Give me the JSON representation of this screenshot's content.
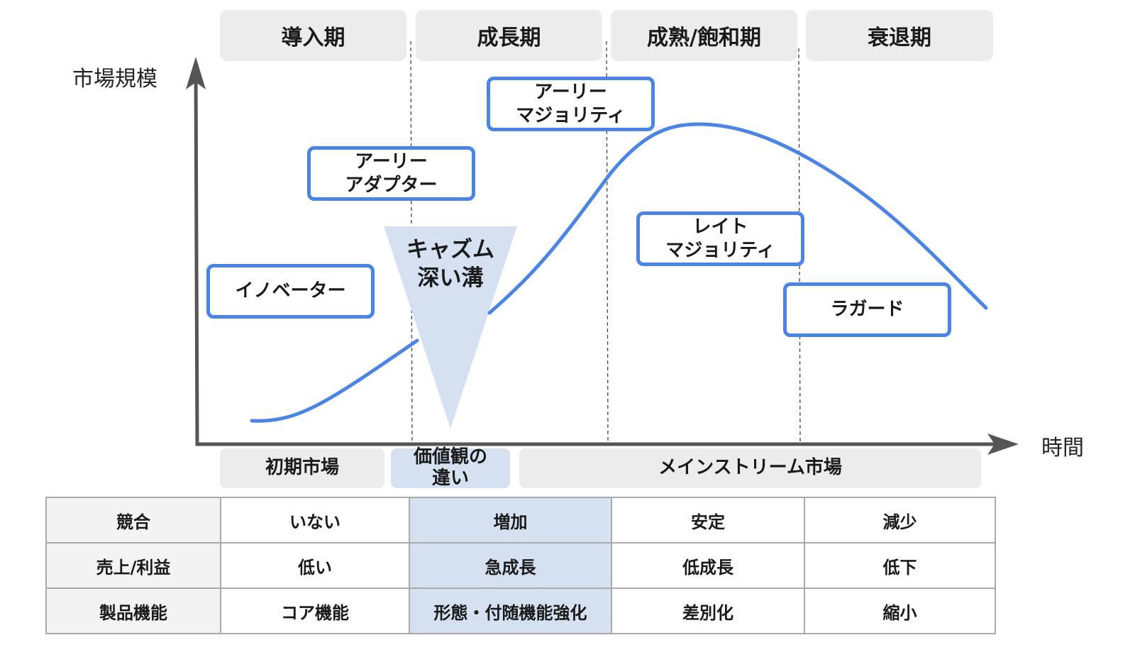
{
  "phases": [
    "導入期",
    "成長期",
    "成熟/飽和期",
    "衰退期"
  ],
  "axes": {
    "y_label": "市場規模",
    "x_label": "時間"
  },
  "adopters": {
    "innovators": "イノベーター",
    "early_adopters": "アーリー\nアダプター",
    "early_majority": "アーリー\nマジョリティ",
    "late_majority": "レイト\nマジョリティ",
    "laggards": "ラガード"
  },
  "chasm": {
    "line1": "キャズム",
    "line2": "深い溝"
  },
  "market_segments": {
    "early": "初期市場",
    "gap": "価値観の\n違い",
    "mainstream": "メインストリーム市場"
  },
  "table": {
    "rows": [
      {
        "label": "競合",
        "cells": [
          "いない",
          "増加",
          "安定",
          "減少"
        ]
      },
      {
        "label": "売上/利益",
        "cells": [
          "低い",
          "急成長",
          "低成長",
          "低下"
        ]
      },
      {
        "label": "製品機能",
        "cells": [
          "コア機能",
          "形態・付随機能強化",
          "差別化",
          "縮小"
        ]
      }
    ]
  },
  "colors": {
    "curve": "#4a84e4",
    "chasm_fill": "#d5e1f1",
    "phase_bg": "#ececec",
    "axis": "#555555"
  }
}
